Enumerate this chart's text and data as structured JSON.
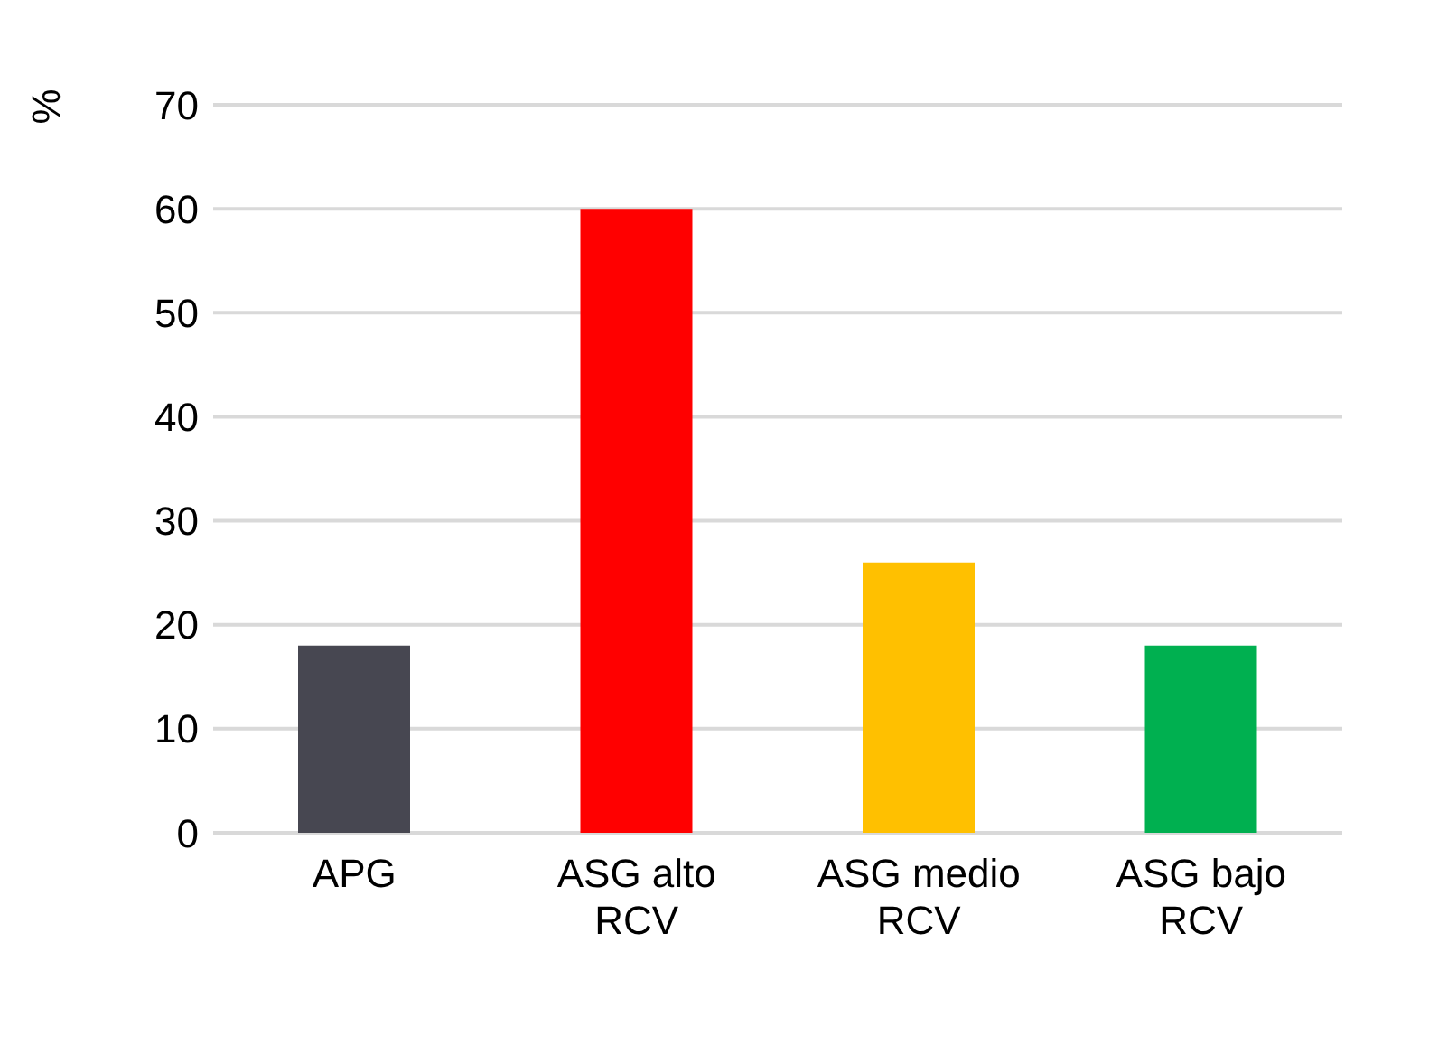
{
  "chart_data": {
    "type": "bar",
    "ylabel": "%",
    "categories": [
      "APG",
      "ASG alto RCV",
      "ASG medio RCV",
      "ASG bajo RCV"
    ],
    "values": [
      18,
      60,
      26,
      18
    ],
    "colors": [
      "#474751",
      "#ff0000",
      "#ffc000",
      "#00b050"
    ],
    "ylim": [
      0,
      70
    ],
    "yticks": [
      0,
      10,
      20,
      30,
      40,
      50,
      60,
      70
    ],
    "grid": "y"
  }
}
